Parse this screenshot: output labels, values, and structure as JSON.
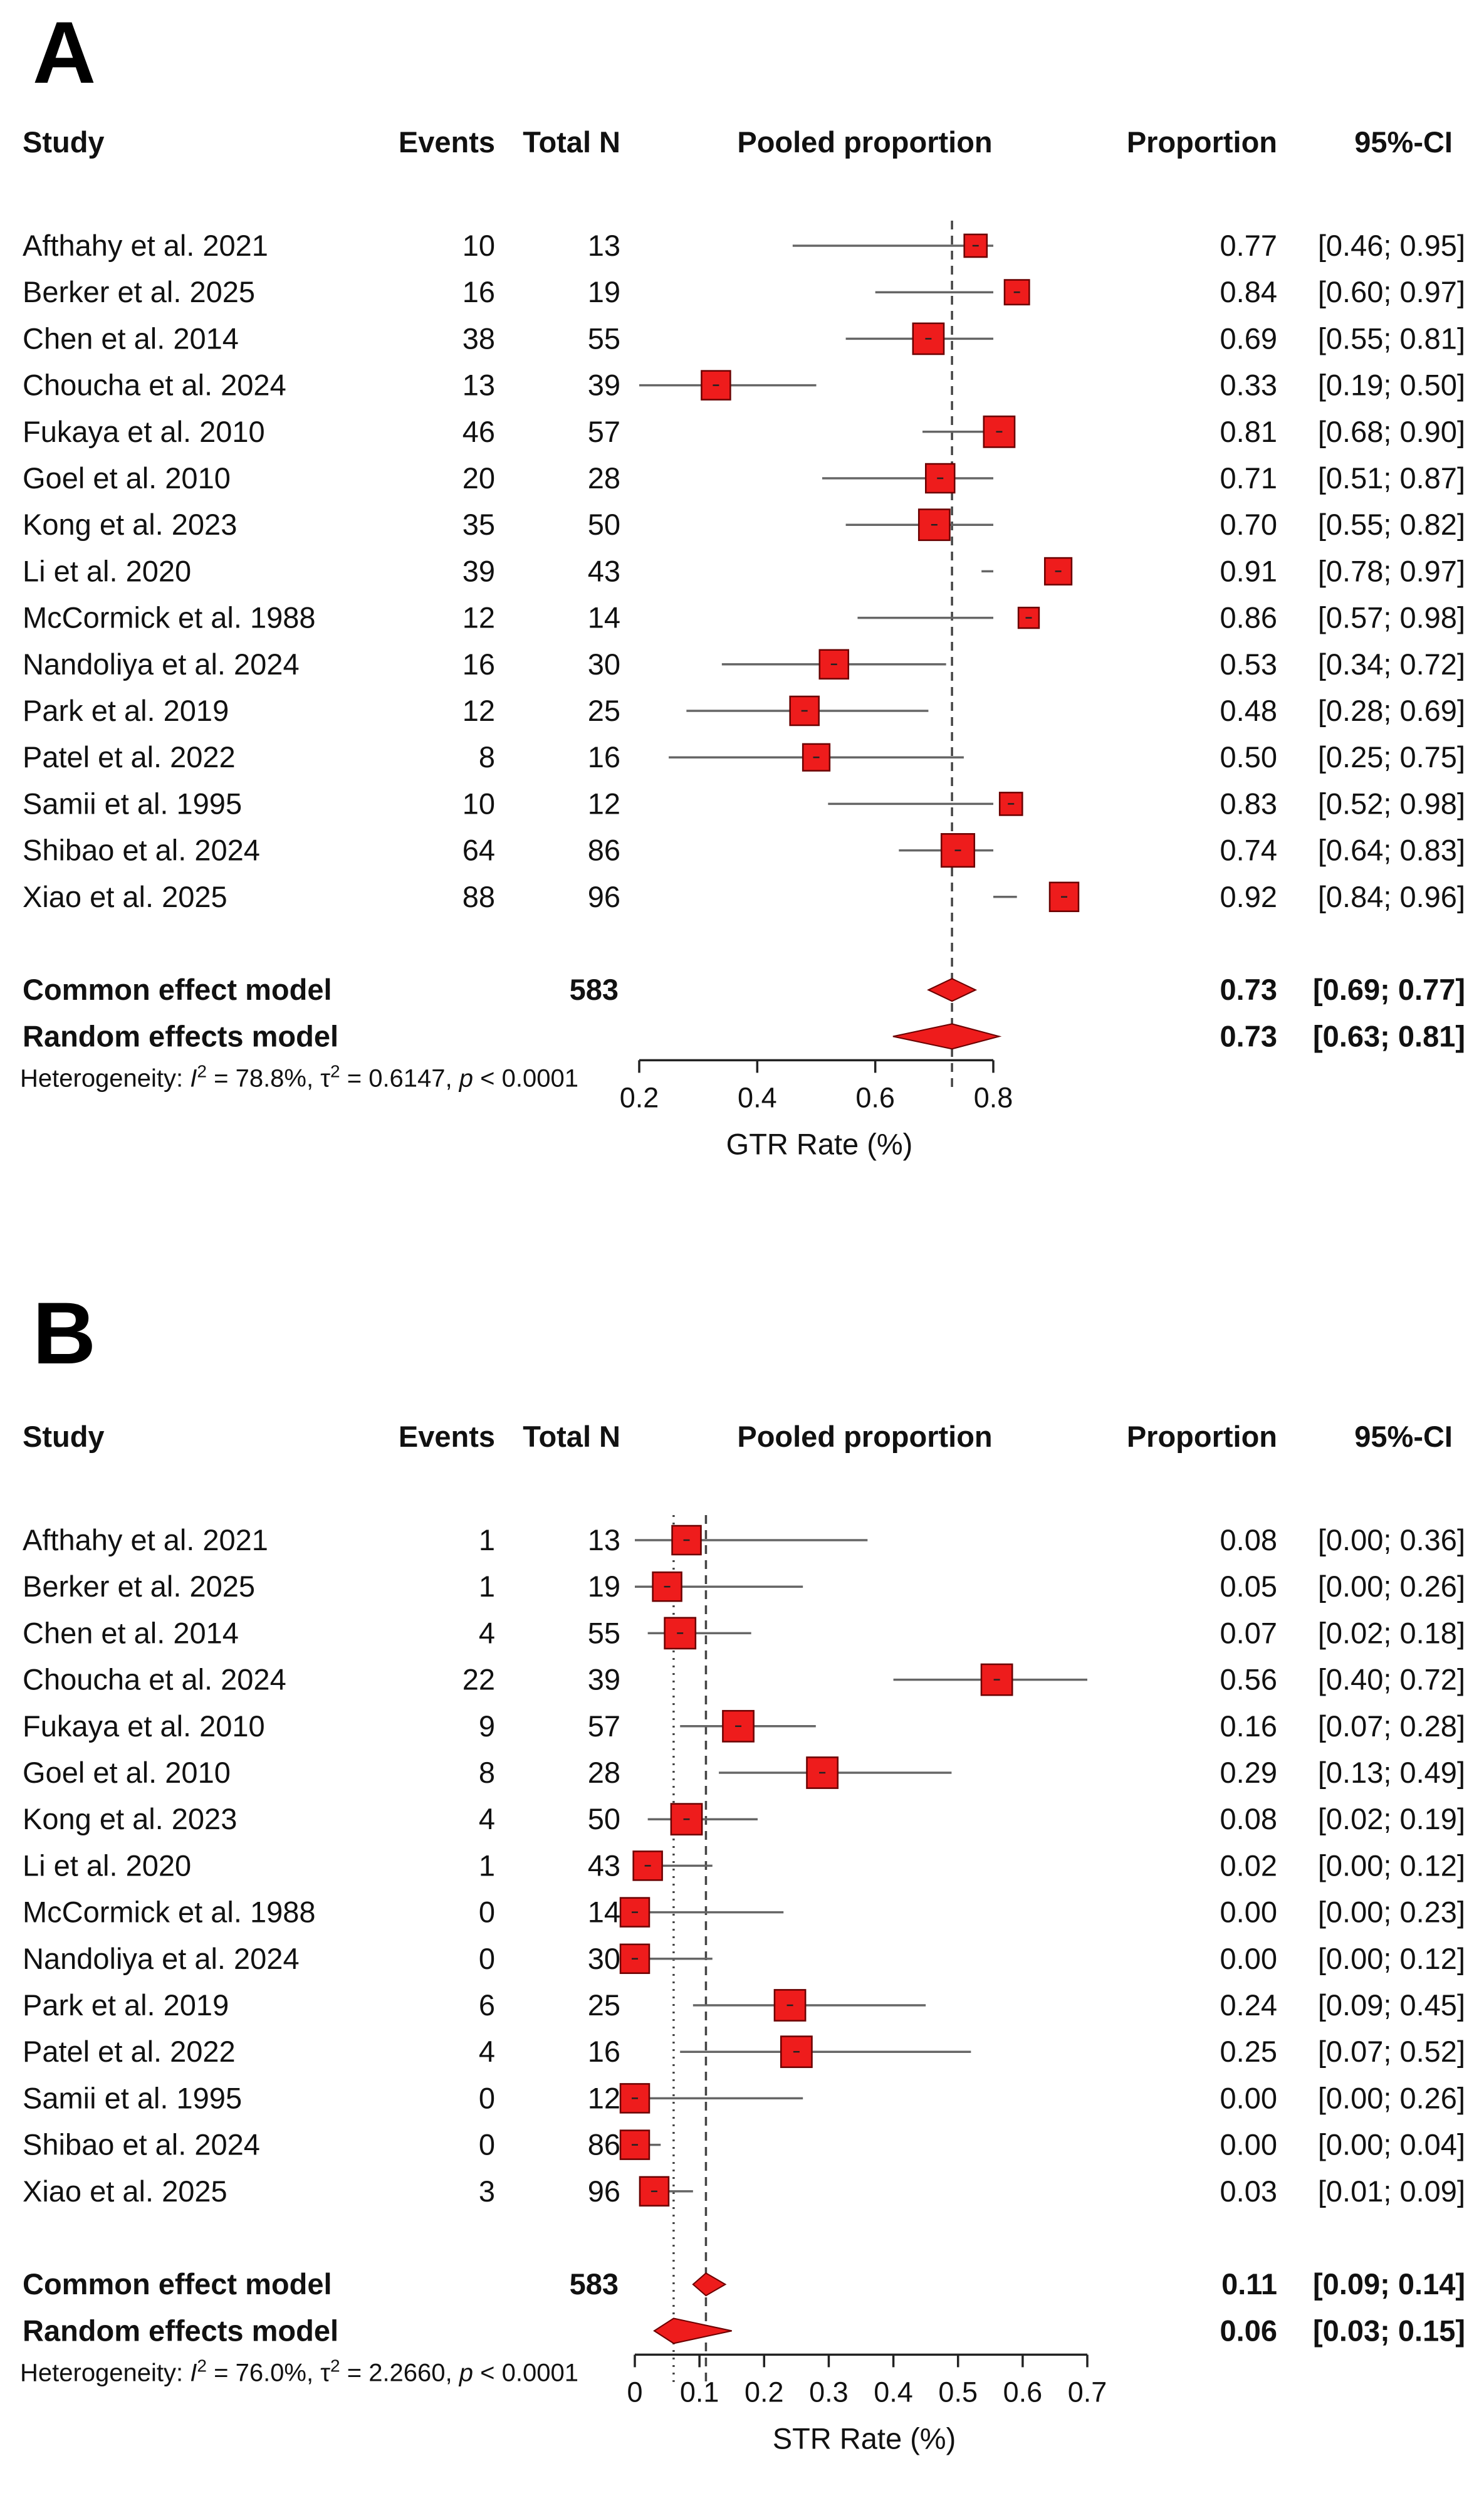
{
  "chart_data": [
    {
      "panel": "A",
      "type": "forest",
      "headers": {
        "study": "Study",
        "events": "Events",
        "total": "Total N",
        "plot": "Pooled proportion",
        "proportion": "Proportion",
        "ci": "95%-CI"
      },
      "studies": [
        {
          "name": "Afthahy et al. 2021",
          "events": "10",
          "total": "13",
          "prop": "0.77",
          "ci": "[0.46; 0.95]",
          "est": 0.77,
          "lo": 0.46,
          "hi": 0.95,
          "weight": 0.55
        },
        {
          "name": "Berker et al. 2025",
          "events": "16",
          "total": "19",
          "prop": "0.84",
          "ci": "[0.60; 0.97]",
          "est": 0.84,
          "lo": 0.6,
          "hi": 0.97,
          "weight": 0.6
        },
        {
          "name": "Chen et al. 2014",
          "events": "38",
          "total": "55",
          "prop": "0.69",
          "ci": "[0.55; 0.81]",
          "est": 0.69,
          "lo": 0.55,
          "hi": 0.81,
          "weight": 0.75
        },
        {
          "name": "Choucha et al. 2024",
          "events": "13",
          "total": "39",
          "prop": "0.33",
          "ci": "[0.19; 0.50]",
          "est": 0.33,
          "lo": 0.19,
          "hi": 0.5,
          "weight": 0.7
        },
        {
          "name": "Fukaya et al. 2010",
          "events": "46",
          "total": "57",
          "prop": "0.81",
          "ci": "[0.68; 0.90]",
          "est": 0.81,
          "lo": 0.68,
          "hi": 0.9,
          "weight": 0.75
        },
        {
          "name": "Goel et al. 2010",
          "events": "20",
          "total": "28",
          "prop": "0.71",
          "ci": "[0.51; 0.87]",
          "est": 0.71,
          "lo": 0.51,
          "hi": 0.87,
          "weight": 0.7
        },
        {
          "name": "Kong et al. 2023",
          "events": "35",
          "total": "50",
          "prop": "0.70",
          "ci": "[0.55; 0.82]",
          "est": 0.7,
          "lo": 0.55,
          "hi": 0.82,
          "weight": 0.75
        },
        {
          "name": "Li et al. 2020",
          "events": "39",
          "total": "43",
          "prop": "0.91",
          "ci": "[0.78; 0.97]",
          "est": 0.91,
          "lo": 0.78,
          "hi": 0.97,
          "weight": 0.65
        },
        {
          "name": "McCormick et al. 1988",
          "events": "12",
          "total": "14",
          "prop": "0.86",
          "ci": "[0.57; 0.98]",
          "est": 0.86,
          "lo": 0.57,
          "hi": 0.98,
          "weight": 0.5
        },
        {
          "name": "Nandoliya et al. 2024",
          "events": "16",
          "total": "30",
          "prop": "0.53",
          "ci": "[0.34; 0.72]",
          "est": 0.53,
          "lo": 0.34,
          "hi": 0.72,
          "weight": 0.7
        },
        {
          "name": "Park et al. 2019",
          "events": "12",
          "total": "25",
          "prop": "0.48",
          "ci": "[0.28; 0.69]",
          "est": 0.48,
          "lo": 0.28,
          "hi": 0.69,
          "weight": 0.7
        },
        {
          "name": "Patel et al. 2022",
          "events": "8",
          "total": "16",
          "prop": "0.50",
          "ci": "[0.25; 0.75]",
          "est": 0.5,
          "lo": 0.25,
          "hi": 0.75,
          "weight": 0.65
        },
        {
          "name": "Samii et al. 1995",
          "events": "10",
          "total": "12",
          "prop": "0.83",
          "ci": "[0.52; 0.98]",
          "est": 0.83,
          "lo": 0.52,
          "hi": 0.98,
          "weight": 0.55
        },
        {
          "name": "Shibao et al. 2024",
          "events": "64",
          "total": "86",
          "prop": "0.74",
          "ci": "[0.64; 0.83]",
          "est": 0.74,
          "lo": 0.64,
          "hi": 0.83,
          "weight": 0.8
        },
        {
          "name": "Xiao et al. 2025",
          "events": "88",
          "total": "96",
          "prop": "0.92",
          "ci": "[0.84; 0.96]",
          "est": 0.92,
          "lo": 0.84,
          "hi": 0.96,
          "weight": 0.7
        }
      ],
      "common": {
        "name": "Common effect model",
        "total": "583",
        "prop": "0.73",
        "ci": "[0.69; 0.77]",
        "est": 0.73,
        "lo": 0.69,
        "hi": 0.77
      },
      "random": {
        "name": "Random effects model",
        "prop": "0.73",
        "ci": "[0.63; 0.81]",
        "est": 0.73,
        "lo": 0.63,
        "hi": 0.81
      },
      "heterogeneity": {
        "prefix": "Heterogeneity: ",
        "i2_label": "I",
        "sup": "2",
        "i2_value": " = 78.8%, ",
        "tau_label": "τ",
        "tau_value": " = 0.6147, ",
        "p_label": "p",
        "p_value": " < 0.0001"
      },
      "xaxis": {
        "label": "GTR Rate (%)",
        "xlim": [
          0.2,
          0.8
        ],
        "ticks": [
          0.2,
          0.4,
          0.6,
          0.8
        ],
        "tick_labels": [
          "0.2",
          "0.4",
          "0.6",
          "0.8"
        ],
        "dashed_ref": 0.73
      }
    },
    {
      "panel": "B",
      "type": "forest",
      "headers": {
        "study": "Study",
        "events": "Events",
        "total": "Total N",
        "plot": "Pooled proportion",
        "proportion": "Proportion",
        "ci": "95%-CI"
      },
      "studies": [
        {
          "name": "Afthahy et al. 2021",
          "events": "1",
          "total": "13",
          "prop": "0.08",
          "ci": "[0.00; 0.36]",
          "est": 0.08,
          "lo": 0.0,
          "hi": 0.36,
          "weight": 0.7
        },
        {
          "name": "Berker et al. 2025",
          "events": "1",
          "total": "19",
          "prop": "0.05",
          "ci": "[0.00; 0.26]",
          "est": 0.05,
          "lo": 0.0,
          "hi": 0.26,
          "weight": 0.7
        },
        {
          "name": "Chen et al. 2014",
          "events": "4",
          "total": "55",
          "prop": "0.07",
          "ci": "[0.02; 0.18]",
          "est": 0.07,
          "lo": 0.02,
          "hi": 0.18,
          "weight": 0.75
        },
        {
          "name": "Choucha et al. 2024",
          "events": "22",
          "total": "39",
          "prop": "0.56",
          "ci": "[0.40; 0.72]",
          "est": 0.56,
          "lo": 0.4,
          "hi": 0.72,
          "weight": 0.75
        },
        {
          "name": "Fukaya et al. 2010",
          "events": "9",
          "total": "57",
          "prop": "0.16",
          "ci": "[0.07; 0.28]",
          "est": 0.16,
          "lo": 0.07,
          "hi": 0.28,
          "weight": 0.75
        },
        {
          "name": "Goel et al. 2010",
          "events": "8",
          "total": "28",
          "prop": "0.29",
          "ci": "[0.13; 0.49]",
          "est": 0.29,
          "lo": 0.13,
          "hi": 0.49,
          "weight": 0.75
        },
        {
          "name": "Kong et al. 2023",
          "events": "4",
          "total": "50",
          "prop": "0.08",
          "ci": "[0.02; 0.19]",
          "est": 0.08,
          "lo": 0.02,
          "hi": 0.19,
          "weight": 0.75
        },
        {
          "name": "Li et al. 2020",
          "events": "1",
          "total": "43",
          "prop": "0.02",
          "ci": "[0.00; 0.12]",
          "est": 0.02,
          "lo": 0.0,
          "hi": 0.12,
          "weight": 0.7
        },
        {
          "name": "McCormick et al. 1988",
          "events": "0",
          "total": "14",
          "prop": "0.00",
          "ci": "[0.00; 0.23]",
          "est": 0.0,
          "lo": 0.0,
          "hi": 0.23,
          "weight": 0.7
        },
        {
          "name": "Nandoliya et al. 2024",
          "events": "0",
          "total": "30",
          "prop": "0.00",
          "ci": "[0.00; 0.12]",
          "est": 0.0,
          "lo": 0.0,
          "hi": 0.12,
          "weight": 0.7
        },
        {
          "name": "Park et al. 2019",
          "events": "6",
          "total": "25",
          "prop": "0.24",
          "ci": "[0.09; 0.45]",
          "est": 0.24,
          "lo": 0.09,
          "hi": 0.45,
          "weight": 0.75
        },
        {
          "name": "Patel et al. 2022",
          "events": "4",
          "total": "16",
          "prop": "0.25",
          "ci": "[0.07; 0.52]",
          "est": 0.25,
          "lo": 0.07,
          "hi": 0.52,
          "weight": 0.75
        },
        {
          "name": "Samii et al. 1995",
          "events": "0",
          "total": "12",
          "prop": "0.00",
          "ci": "[0.00; 0.26]",
          "est": 0.0,
          "lo": 0.0,
          "hi": 0.26,
          "weight": 0.7
        },
        {
          "name": "Shibao et al. 2024",
          "events": "0",
          "total": "86",
          "prop": "0.00",
          "ci": "[0.00; 0.04]",
          "est": 0.0,
          "lo": 0.0,
          "hi": 0.04,
          "weight": 0.7
        },
        {
          "name": "Xiao et al. 2025",
          "events": "3",
          "total": "96",
          "prop": "0.03",
          "ci": "[0.01; 0.09]",
          "est": 0.03,
          "lo": 0.01,
          "hi": 0.09,
          "weight": 0.7
        }
      ],
      "common": {
        "name": "Common effect model",
        "total": "583",
        "prop": "0.11",
        "ci": "[0.09; 0.14]",
        "est": 0.11,
        "lo": 0.09,
        "hi": 0.14
      },
      "random": {
        "name": "Random effects model",
        "prop": "0.06",
        "ci": "[0.03; 0.15]",
        "est": 0.06,
        "lo": 0.03,
        "hi": 0.15
      },
      "heterogeneity": {
        "prefix": "Heterogeneity: ",
        "i2_label": "I",
        "sup": "2",
        "i2_value": " = 76.0%, ",
        "tau_label": "τ",
        "tau_value": " = 2.2660, ",
        "p_label": "p",
        "p_value": " < 0.0001"
      },
      "xaxis": {
        "label": "STR Rate (%)",
        "xlim": [
          0,
          0.7
        ],
        "ticks": [
          0,
          0.1,
          0.2,
          0.3,
          0.4,
          0.5,
          0.6,
          0.7
        ],
        "tick_labels": [
          "0",
          "0.1",
          "0.2",
          "0.3",
          "0.4",
          "0.5",
          "0.6",
          "0.7"
        ],
        "dashed_ref": 0.11,
        "dotted_ref": 0.06
      }
    }
  ],
  "colors": {
    "marker": "#ee1c1c",
    "marker_stroke": "#6a0000",
    "line": "#666666",
    "axis": "#222222",
    "text": "#111111"
  }
}
